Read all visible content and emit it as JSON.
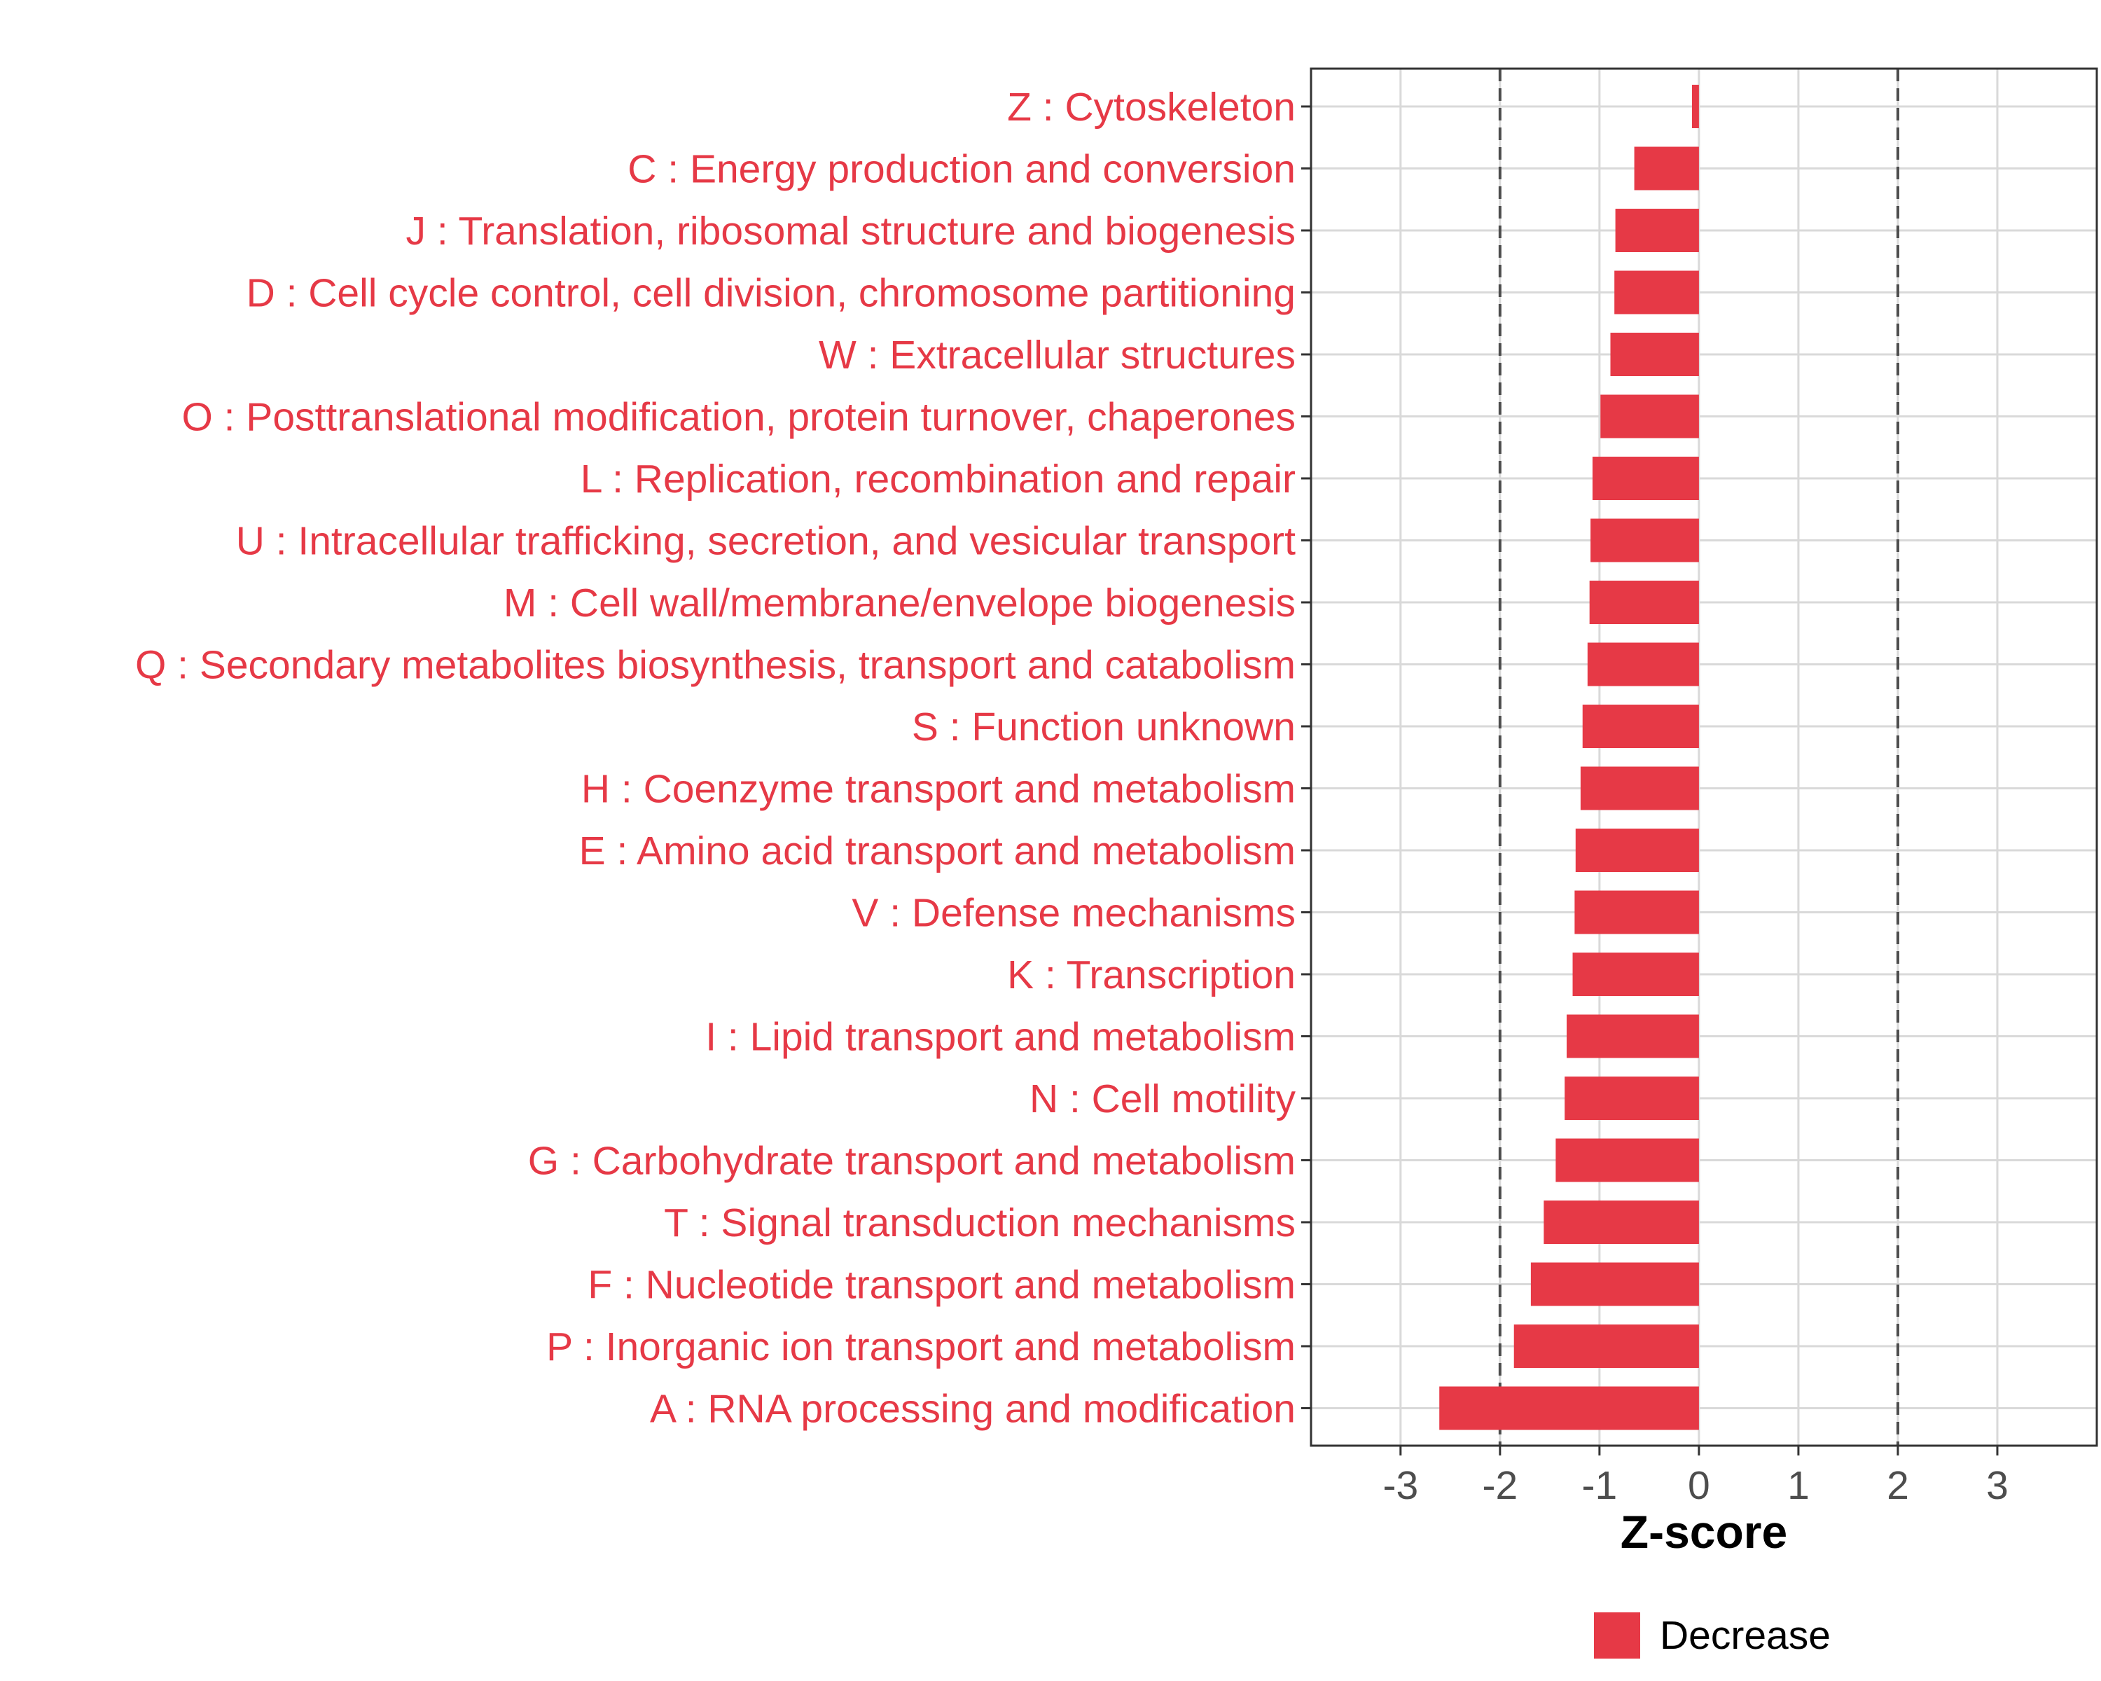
{
  "chart_data": {
    "type": "bar",
    "orientation": "horizontal",
    "title": "",
    "xlabel": "Z-score",
    "ylabel": "",
    "xlim": [
      -3.9,
      4.0
    ],
    "xticks": [
      -3,
      -2,
      -1,
      0,
      1,
      2,
      3
    ],
    "xtick_labels": [
      "-3",
      "-2",
      "-1",
      "0",
      "1",
      "2",
      "3"
    ],
    "reference_lines": [
      -2,
      2
    ],
    "grid": true,
    "categories": [
      "Z : Cytoskeleton",
      "C : Energy production and conversion",
      "J : Translation, ribosomal structure and biogenesis",
      "D : Cell cycle control, cell division, chromosome partitioning",
      "W : Extracellular structures",
      "O : Posttranslational modification, protein turnover, chaperones",
      "L : Replication, recombination and repair",
      "U : Intracellular trafficking, secretion, and vesicular transport",
      "M : Cell wall/membrane/envelope biogenesis",
      "Q : Secondary metabolites biosynthesis, transport and catabolism",
      "S : Function unknown",
      "H : Coenzyme transport and metabolism",
      "E : Amino acid transport and metabolism",
      "V : Defense mechanisms",
      "K : Transcription",
      "I : Lipid transport and metabolism",
      "N : Cell motility",
      "G : Carbohydrate transport and metabolism",
      "T : Signal transduction mechanisms",
      "F : Nucleotide transport and metabolism",
      "P : Inorganic ion transport and metabolism",
      "A : RNA processing and modification"
    ],
    "values": [
      -0.07,
      -0.65,
      -0.84,
      -0.85,
      -0.89,
      -0.99,
      -1.07,
      -1.09,
      -1.1,
      -1.12,
      -1.17,
      -1.19,
      -1.24,
      -1.25,
      -1.27,
      -1.33,
      -1.35,
      -1.44,
      -1.56,
      -1.69,
      -1.86,
      -2.61
    ],
    "series": [
      {
        "name": "Decrease",
        "color": "#e63946"
      }
    ],
    "legend": {
      "placement": "bottom-center",
      "entries": [
        "Decrease"
      ]
    }
  },
  "colors": {
    "bar": "#e63946",
    "label": "#e63946",
    "grid": "#d9d9d9",
    "panel_border": "#333333",
    "reference_line": "#4d4d4d",
    "tick_text": "#4d4d4d"
  }
}
